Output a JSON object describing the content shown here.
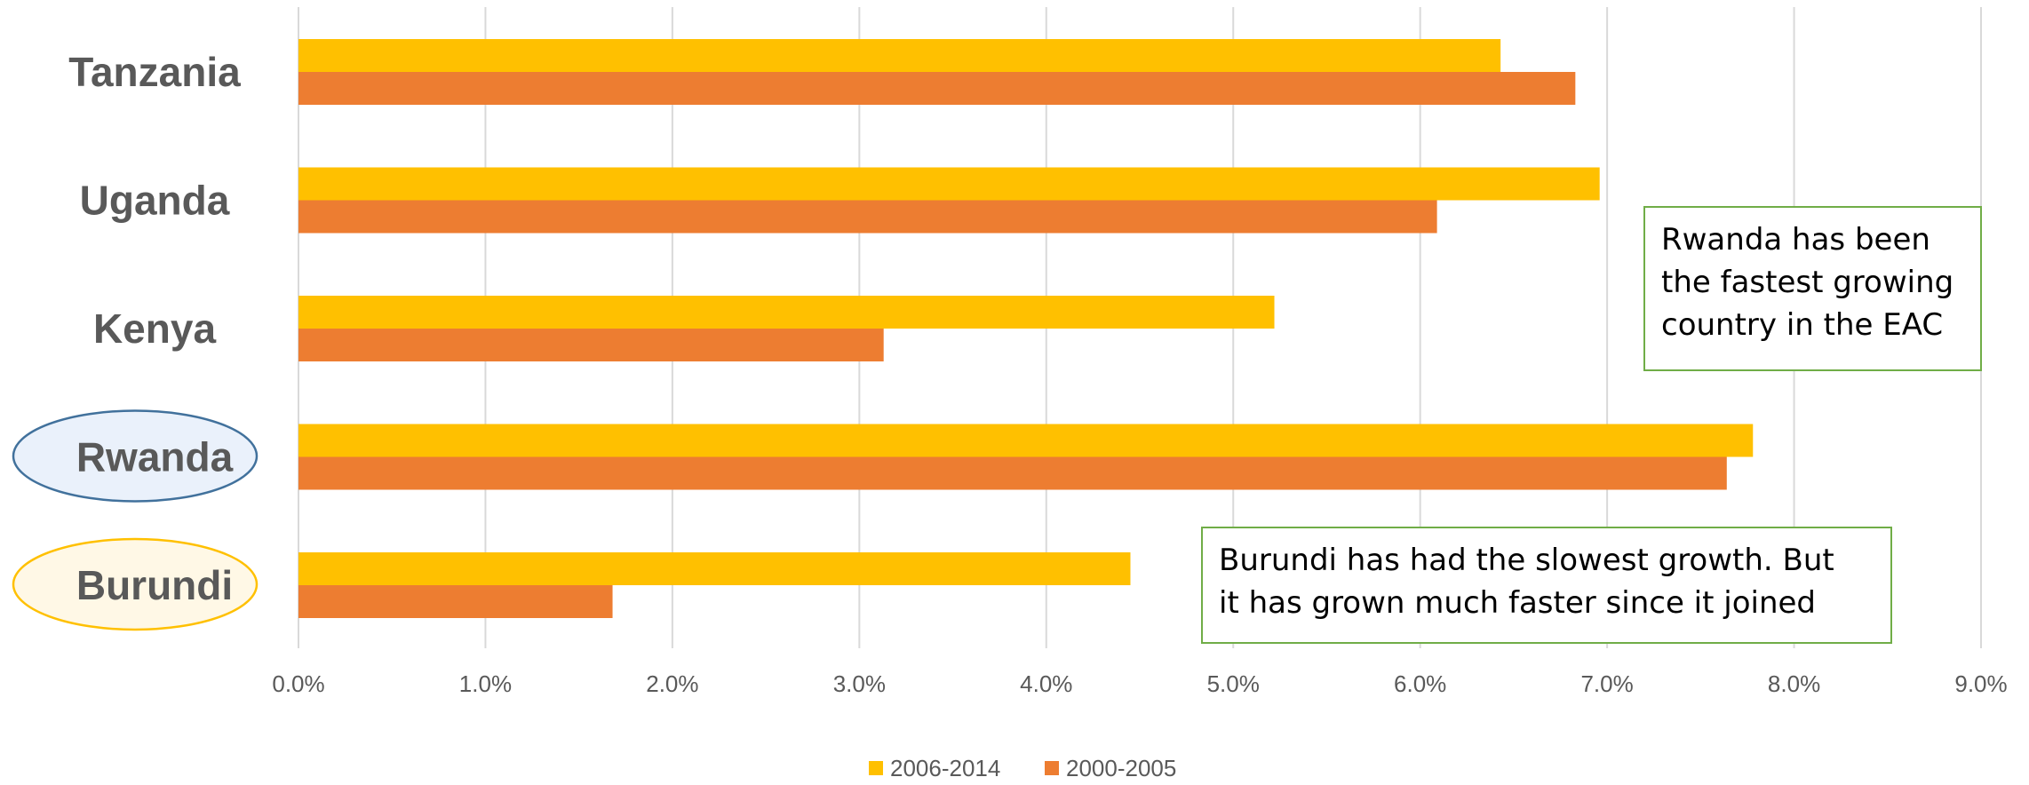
{
  "chart_data": {
    "type": "bar",
    "orientation": "horizontal",
    "categories": [
      "Tanzania",
      "Uganda",
      "Kenya",
      "Rwanda",
      "Burundi"
    ],
    "series": [
      {
        "name": "2006-2014",
        "color": "#ffc000",
        "values": [
          6.43,
          6.96,
          5.22,
          7.78,
          4.45
        ]
      },
      {
        "name": "2000-2005",
        "color": "#ed7d31",
        "values": [
          6.83,
          6.09,
          3.13,
          7.64,
          1.68
        ]
      }
    ],
    "x_ticks": [
      "0.0%",
      "1.0%",
      "2.0%",
      "3.0%",
      "4.0%",
      "5.0%",
      "6.0%",
      "7.0%",
      "8.0%",
      "9.0%"
    ],
    "xlim": [
      0,
      9
    ],
    "grid": "vertical",
    "legend_position": "bottom",
    "highlighted_categories": [
      {
        "category": "Rwanda",
        "fill": "#eaf1fb",
        "stroke": "#41719c"
      },
      {
        "category": "Burundi",
        "fill": "#fff8e6",
        "stroke": "#ffc000"
      }
    ],
    "annotations": [
      {
        "id": "rwanda-note",
        "lines": [
          "Rwanda has been",
          "the fastest growing",
          "country in the EAC"
        ]
      },
      {
        "id": "burundi-note",
        "lines": [
          "Burundi has had the slowest growth. But",
          "it has grown much faster since it joined"
        ]
      }
    ]
  }
}
